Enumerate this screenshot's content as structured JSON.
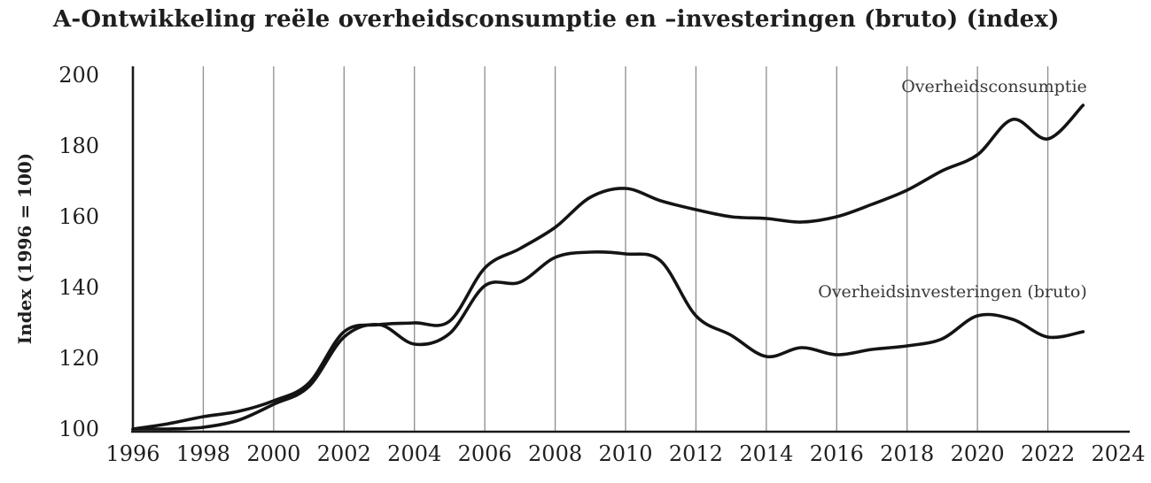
{
  "chart_data": {
    "type": "line",
    "title": "A-Ontwikkeling reële overheidsconsumptie en –investeringen (bruto) (index)",
    "ylabel": "Index (1996 = 100)",
    "x": [
      1996,
      1997,
      1998,
      1999,
      2000,
      2001,
      2002,
      2003,
      2004,
      2005,
      2006,
      2007,
      2008,
      2009,
      2010,
      2011,
      2012,
      2013,
      2014,
      2015,
      2016,
      2017,
      2018,
      2019,
      2020,
      2021,
      2022,
      2023
    ],
    "series": [
      {
        "name": "Overheidsconsumptie",
        "values": [
          100,
          101.5,
          103.5,
          105,
          108,
          113,
          127.5,
          129.5,
          130,
          130.5,
          145.5,
          151,
          157,
          165.5,
          168,
          164.5,
          162,
          160,
          159.5,
          158.5,
          160,
          163.5,
          167.5,
          173,
          177.5,
          187.5,
          182,
          191.5
        ]
      },
      {
        "name": "Overheidsinvesteringen (bruto)",
        "values": [
          100,
          100,
          100.5,
          102.5,
          107,
          112,
          126,
          129.5,
          124,
          127,
          140.5,
          141.5,
          148.5,
          150,
          149.5,
          147.5,
          132,
          126.5,
          120.5,
          123,
          121,
          122.5,
          123.5,
          125.5,
          132,
          131,
          126,
          127.5
        ]
      }
    ],
    "xticks": [
      1996,
      1998,
      2000,
      2002,
      2004,
      2006,
      2008,
      2010,
      2012,
      2014,
      2016,
      2018,
      2020,
      2022,
      2024
    ],
    "yticks": [
      100,
      120,
      140,
      160,
      180,
      200
    ],
    "xlim": [
      1996,
      2024
    ],
    "ylim": [
      100,
      200
    ],
    "grid": "vertical-only",
    "legend_position": "inline-labels-right",
    "colors": {
      "line": "#141414",
      "grid": "#8c8c8c",
      "axis": "#1a1a1a",
      "tick_text": "#1f1f1f",
      "series_label_text": "#383838",
      "background": "#ffffff"
    }
  }
}
